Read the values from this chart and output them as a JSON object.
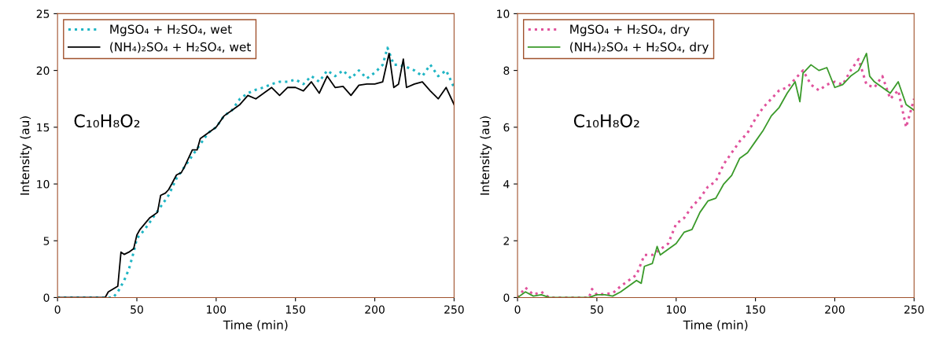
{
  "chart_data": [
    {
      "type": "line",
      "xlabel": "Time (min)",
      "ylabel": "Intensity (au)",
      "xlim": [
        0,
        250
      ],
      "ylim": [
        0,
        25
      ],
      "xticks": [
        0,
        50,
        100,
        150,
        200,
        250
      ],
      "yticks": [
        0,
        5,
        10,
        15,
        20,
        25
      ],
      "legend": "top left",
      "grid": false,
      "annotations": [
        "C₁₀H₈O₂"
      ],
      "series": [
        {
          "name": "MgSO₄ + H₂SO₄, wet",
          "color": "#1fb5c4",
          "line_style": "dotted",
          "x": [
            0,
            35,
            38,
            42,
            45,
            48,
            50,
            55,
            60,
            65,
            70,
            75,
            80,
            85,
            90,
            95,
            100,
            105,
            110,
            115,
            120,
            125,
            130,
            135,
            140,
            145,
            150,
            155,
            160,
            165,
            170,
            175,
            180,
            185,
            190,
            195,
            200,
            205,
            208,
            212,
            215,
            220,
            225,
            230,
            235,
            240,
            245,
            250
          ],
          "values": [
            0,
            0,
            0.5,
            1.5,
            2.5,
            4,
            5.2,
            6,
            7,
            8,
            9,
            10.5,
            11.5,
            12.5,
            13.5,
            14.5,
            15,
            16,
            16.5,
            17.5,
            18,
            18.3,
            18.5,
            18.8,
            19,
            19,
            19.2,
            18.8,
            19.5,
            19,
            20,
            19.5,
            20,
            19.3,
            20,
            19.3,
            19.8,
            20.5,
            22,
            20.5,
            20.5,
            20.3,
            20,
            19.5,
            20.5,
            19.5,
            20,
            18.5
          ]
        },
        {
          "name": "(NH₄)₂SO₄ + H₂SO₄, wet",
          "color": "#000000",
          "line_style": "solid",
          "x": [
            0,
            30,
            32,
            38,
            40,
            42,
            45,
            48,
            50,
            52,
            55,
            58,
            60,
            63,
            65,
            68,
            70,
            72,
            75,
            78,
            80,
            85,
            88,
            90,
            95,
            100,
            105,
            110,
            115,
            120,
            125,
            130,
            135,
            140,
            145,
            150,
            155,
            160,
            165,
            170,
            175,
            180,
            185,
            190,
            195,
            200,
            205,
            209,
            212,
            215,
            218,
            220,
            225,
            230,
            235,
            240,
            245,
            250
          ],
          "values": [
            0,
            0,
            0.5,
            1,
            4,
            3.8,
            4,
            4.3,
            5.5,
            6,
            6.5,
            7,
            7.2,
            7.5,
            9,
            9.2,
            9.5,
            10,
            10.8,
            11,
            11.5,
            13,
            13,
            14,
            14.5,
            15,
            16,
            16.5,
            17,
            17.8,
            17.5,
            18,
            18.5,
            17.8,
            18.5,
            18.5,
            18.2,
            19,
            18,
            19.5,
            18.5,
            18.6,
            17.8,
            18.7,
            18.8,
            18.8,
            19,
            21.5,
            18.5,
            18.8,
            21,
            18.5,
            18.8,
            19,
            18.2,
            17.5,
            18.5,
            17
          ]
        }
      ]
    },
    {
      "type": "line",
      "xlabel": "Time (min)",
      "ylabel": "Intensity (au)",
      "xlim": [
        0,
        250
      ],
      "ylim": [
        0,
        10
      ],
      "xticks": [
        0,
        50,
        100,
        150,
        200,
        250
      ],
      "yticks": [
        0,
        2,
        4,
        6,
        8,
        10
      ],
      "legend": "top left",
      "grid": false,
      "annotations": [
        "C₁₀H₈O₂"
      ],
      "series": [
        {
          "name": "MgSO₄ + H₂SO₄, dry",
          "color": "#e0529c",
          "line_style": "dotted",
          "x": [
            0,
            5,
            10,
            15,
            20,
            45,
            47,
            50,
            60,
            65,
            70,
            75,
            80,
            85,
            90,
            95,
            100,
            105,
            110,
            115,
            120,
            125,
            130,
            135,
            140,
            145,
            150,
            155,
            160,
            165,
            170,
            175,
            180,
            185,
            190,
            195,
            200,
            205,
            210,
            215,
            220,
            225,
            230,
            235,
            240,
            245,
            250
          ],
          "values": [
            0,
            0.35,
            0.1,
            0.2,
            0,
            0,
            0.3,
            0.1,
            0.15,
            0.4,
            0.6,
            0.8,
            1.5,
            1.5,
            1.7,
            1.9,
            2.6,
            2.8,
            3.2,
            3.5,
            3.9,
            4.1,
            4.7,
            5.1,
            5.5,
            5.8,
            6.3,
            6.7,
            7.0,
            7.3,
            7.4,
            7.7,
            8.0,
            7.5,
            7.3,
            7.5,
            7.6,
            7.5,
            8.0,
            8.4,
            7.5,
            7.4,
            7.8,
            7.0,
            7.3,
            6.0,
            7.0
          ]
        },
        {
          "name": "(NH₄)₂SO₄ + H₂SO₄, dry",
          "color": "#3a9a2a",
          "line_style": "solid",
          "x": [
            0,
            5,
            10,
            15,
            20,
            45,
            50,
            55,
            60,
            65,
            70,
            75,
            78,
            80,
            85,
            88,
            90,
            95,
            100,
            105,
            110,
            115,
            120,
            125,
            130,
            135,
            140,
            145,
            150,
            155,
            160,
            165,
            170,
            175,
            178,
            180,
            185,
            190,
            195,
            200,
            205,
            210,
            215,
            220,
            222,
            225,
            230,
            235,
            240,
            245,
            250
          ],
          "values": [
            0,
            0.2,
            0.05,
            0.1,
            0,
            0,
            0.1,
            0.1,
            0.05,
            0.2,
            0.4,
            0.6,
            0.5,
            1.1,
            1.2,
            1.8,
            1.5,
            1.7,
            1.9,
            2.3,
            2.4,
            3.0,
            3.4,
            3.5,
            4.0,
            4.3,
            4.9,
            5.1,
            5.5,
            5.9,
            6.4,
            6.7,
            7.2,
            7.6,
            6.9,
            7.9,
            8.2,
            8.0,
            8.1,
            7.4,
            7.5,
            7.8,
            8.0,
            8.6,
            7.8,
            7.6,
            7.4,
            7.2,
            7.6,
            6.8,
            6.6
          ]
        }
      ]
    }
  ]
}
